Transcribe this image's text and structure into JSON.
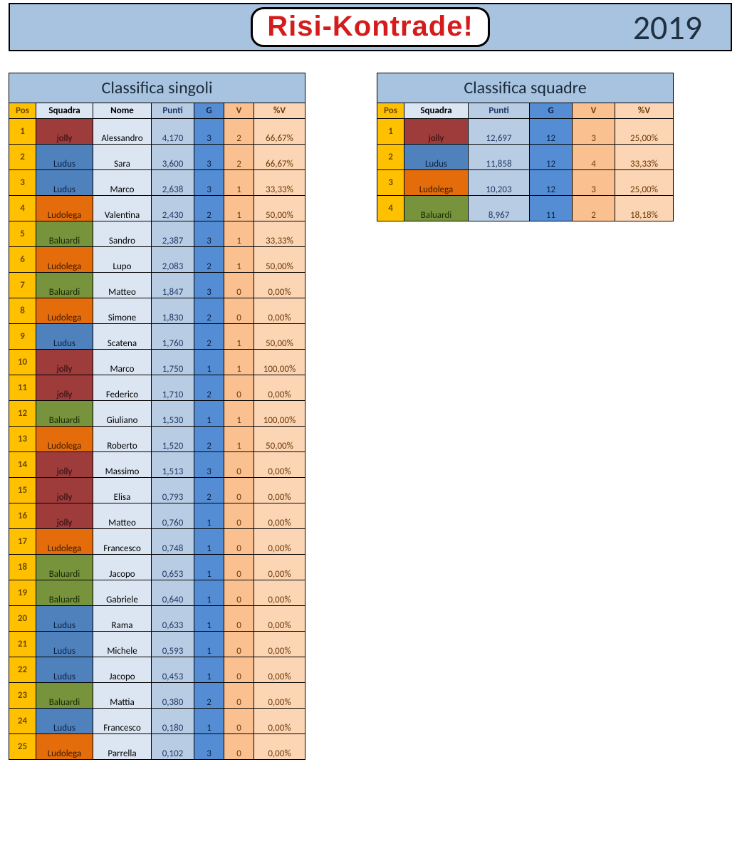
{
  "header": {
    "logo_text": "Risi-Kontrade!",
    "year": "2019"
  },
  "colors": {
    "banner_bg": "#a8c3e0",
    "pos_bg": "#ffc000",
    "nome_bg": "#dce6f2",
    "punti_bg": "#b8cce4",
    "g_bg": "#548dd4",
    "v_bg": "#fac090",
    "pct_bg": "#fcd5b4",
    "team_colors": {
      "jolly": "#9e3b3b",
      "Ludus": "#4f81bd",
      "Ludolega": "#e46c0a",
      "Baluardi": "#77933c"
    }
  },
  "singoli": {
    "title": "Classifica singoli",
    "columns": [
      "Pos",
      "Squadra",
      "Nome",
      "Punti",
      "G",
      "V",
      "%V"
    ],
    "rows": [
      {
        "pos": "1",
        "squad": "jolly",
        "nome": "Alessandro",
        "punti": "4,170",
        "g": "3",
        "v": "2",
        "pct": "66,67%"
      },
      {
        "pos": "2",
        "squad": "Ludus",
        "nome": "Sara",
        "punti": "3,600",
        "g": "3",
        "v": "2",
        "pct": "66,67%"
      },
      {
        "pos": "3",
        "squad": "Ludus",
        "nome": "Marco",
        "punti": "2,638",
        "g": "3",
        "v": "1",
        "pct": "33,33%"
      },
      {
        "pos": "4",
        "squad": "Ludolega",
        "nome": "Valentina",
        "punti": "2,430",
        "g": "2",
        "v": "1",
        "pct": "50,00%"
      },
      {
        "pos": "5",
        "squad": "Baluardi",
        "nome": "Sandro",
        "punti": "2,387",
        "g": "3",
        "v": "1",
        "pct": "33,33%"
      },
      {
        "pos": "6",
        "squad": "Ludolega",
        "nome": "Lupo",
        "punti": "2,083",
        "g": "2",
        "v": "1",
        "pct": "50,00%"
      },
      {
        "pos": "7",
        "squad": "Baluardi",
        "nome": "Matteo",
        "punti": "1,847",
        "g": "3",
        "v": "0",
        "pct": "0,00%"
      },
      {
        "pos": "8",
        "squad": "Ludolega",
        "nome": "Simone",
        "punti": "1,830",
        "g": "2",
        "v": "0",
        "pct": "0,00%"
      },
      {
        "pos": "9",
        "squad": "Ludus",
        "nome": "Scatena",
        "punti": "1,760",
        "g": "2",
        "v": "1",
        "pct": "50,00%"
      },
      {
        "pos": "10",
        "squad": "jolly",
        "nome": "Marco",
        "punti": "1,750",
        "g": "1",
        "v": "1",
        "pct": "100,00%"
      },
      {
        "pos": "11",
        "squad": "jolly",
        "nome": "Federico",
        "punti": "1,710",
        "g": "2",
        "v": "0",
        "pct": "0,00%"
      },
      {
        "pos": "12",
        "squad": "Baluardi",
        "nome": "Giuliano",
        "punti": "1,530",
        "g": "1",
        "v": "1",
        "pct": "100,00%"
      },
      {
        "pos": "13",
        "squad": "Ludolega",
        "nome": "Roberto",
        "punti": "1,520",
        "g": "2",
        "v": "1",
        "pct": "50,00%"
      },
      {
        "pos": "14",
        "squad": "jolly",
        "nome": "Massimo",
        "punti": "1,513",
        "g": "3",
        "v": "0",
        "pct": "0,00%"
      },
      {
        "pos": "15",
        "squad": "jolly",
        "nome": "Elisa",
        "punti": "0,793",
        "g": "2",
        "v": "0",
        "pct": "0,00%"
      },
      {
        "pos": "16",
        "squad": "jolly",
        "nome": "Matteo",
        "punti": "0,760",
        "g": "1",
        "v": "0",
        "pct": "0,00%"
      },
      {
        "pos": "17",
        "squad": "Ludolega",
        "nome": "Francesco",
        "punti": "0,748",
        "g": "1",
        "v": "0",
        "pct": "0,00%"
      },
      {
        "pos": "18",
        "squad": "Baluardi",
        "nome": "Jacopo",
        "punti": "0,653",
        "g": "1",
        "v": "0",
        "pct": "0,00%"
      },
      {
        "pos": "19",
        "squad": "Baluardi",
        "nome": "Gabriele",
        "punti": "0,640",
        "g": "1",
        "v": "0",
        "pct": "0,00%"
      },
      {
        "pos": "20",
        "squad": "Ludus",
        "nome": "Rama",
        "punti": "0,633",
        "g": "1",
        "v": "0",
        "pct": "0,00%"
      },
      {
        "pos": "21",
        "squad": "Ludus",
        "nome": "Michele",
        "punti": "0,593",
        "g": "1",
        "v": "0",
        "pct": "0,00%"
      },
      {
        "pos": "22",
        "squad": "Ludus",
        "nome": "Jacopo",
        "punti": "0,453",
        "g": "1",
        "v": "0",
        "pct": "0,00%"
      },
      {
        "pos": "23",
        "squad": "Baluardi",
        "nome": "Mattia",
        "punti": "0,380",
        "g": "2",
        "v": "0",
        "pct": "0,00%"
      },
      {
        "pos": "24",
        "squad": "Ludus",
        "nome": "Francesco",
        "punti": "0,180",
        "g": "1",
        "v": "0",
        "pct": "0,00%"
      },
      {
        "pos": "25",
        "squad": "Ludolega",
        "nome": "Parrella",
        "punti": "0,102",
        "g": "3",
        "v": "0",
        "pct": "0,00%"
      }
    ]
  },
  "squadre": {
    "title": "Classifica squadre",
    "columns": [
      "Pos",
      "Squadra",
      "Punti",
      "G",
      "V",
      "%V"
    ],
    "rows": [
      {
        "pos": "1",
        "squad": "jolly",
        "punti": "12,697",
        "g": "12",
        "v": "3",
        "pct": "25,00%"
      },
      {
        "pos": "2",
        "squad": "Ludus",
        "punti": "11,858",
        "g": "12",
        "v": "4",
        "pct": "33,33%"
      },
      {
        "pos": "3",
        "squad": "Ludolega",
        "punti": "10,203",
        "g": "12",
        "v": "3",
        "pct": "25,00%"
      },
      {
        "pos": "4",
        "squad": "Baluardi",
        "punti": "8,967",
        "g": "11",
        "v": "2",
        "pct": "18,18%"
      }
    ]
  }
}
